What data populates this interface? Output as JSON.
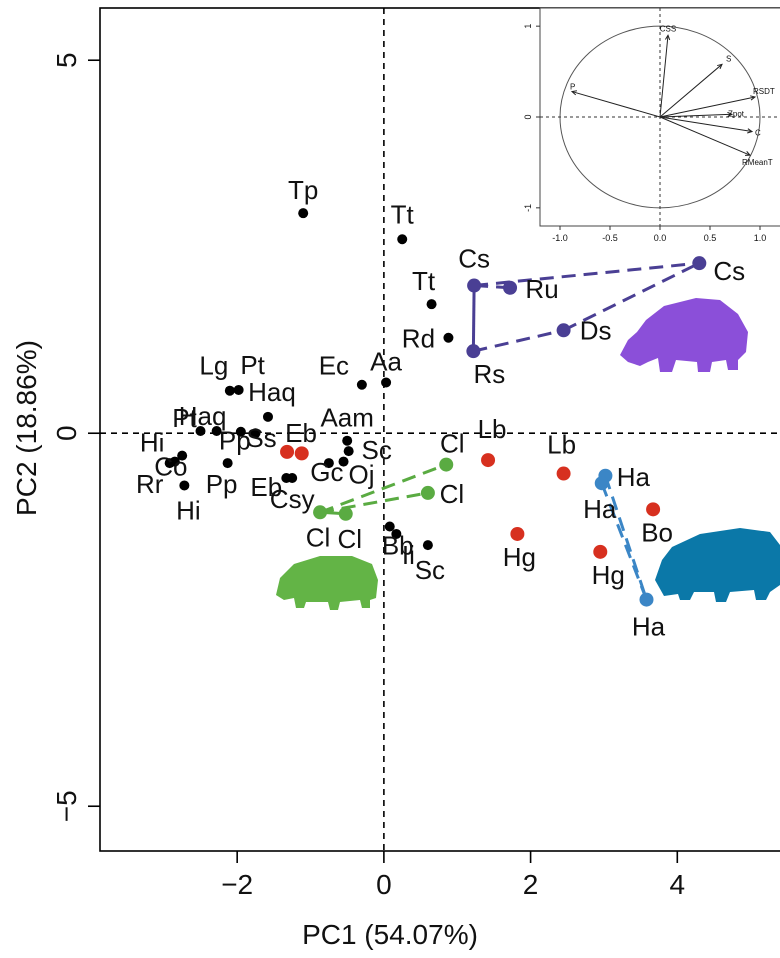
{
  "chart_data": [
    {
      "type": "scatter",
      "xlabel": "PC1 (54.07%)",
      "ylabel": "PC2 (18.86%)",
      "xlim": [
        -3.87,
        5.4
      ],
      "ylim": [
        -5.6,
        5.7
      ],
      "xticks": [
        -2,
        0,
        2,
        4
      ],
      "yticks": [
        -5,
        0,
        5
      ],
      "colors": {
        "other": "#000000",
        "hippo_red": "#d7301f",
        "rhino": "#4a3f94",
        "hippo_blue": "#3b86c6",
        "green": "#5aab42",
        "rhino_silhouette": "#8b4fd9",
        "hippo_silhouette": "#0b78a8",
        "pygmy_silhouette": "#63b446"
      },
      "series": [
        {
          "group": "other",
          "points": [
            {
              "label": "Tp",
              "x": -1.1,
              "y": 2.95
            },
            {
              "label": "Tt",
              "x": 0.25,
              "y": 2.6
            },
            {
              "label": "Tt",
              "x": 0.65,
              "y": 1.73
            },
            {
              "label": "Rd",
              "x": 0.88,
              "y": 1.28
            },
            {
              "label": "Aa",
              "x": 0.03,
              "y": 0.68
            },
            {
              "label": "Ec",
              "x": -0.3,
              "y": 0.65
            },
            {
              "label": "Lg",
              "x": -2.1,
              "y": 0.57
            },
            {
              "label": "Pt",
              "x": -1.98,
              "y": 0.58
            },
            {
              "label": "Haq",
              "x": -1.58,
              "y": 0.22
            },
            {
              "label": "Pt",
              "x": -2.5,
              "y": 0.03
            },
            {
              "label": "Haq",
              "x": -2.28,
              "y": 0.03
            },
            {
              "label": "Pp",
              "x": -1.95,
              "y": 0.02
            },
            {
              "label": "Ss",
              "x": -1.75,
              "y": 0.0
            },
            {
              "label": "Aam",
              "x": -0.5,
              "y": -0.1
            },
            {
              "label": "Hi",
              "x": -2.75,
              "y": -0.3
            },
            {
              "label": "Co",
              "x": -2.85,
              "y": -0.38
            },
            {
              "label": "Rr",
              "x": -2.92,
              "y": -0.4
            },
            {
              "label": "Pp",
              "x": -2.13,
              "y": -0.4
            },
            {
              "label": "Hi",
              "x": -2.72,
              "y": -0.7
            },
            {
              "label": "Eb",
              "x": -1.33,
              "y": -0.6
            },
            {
              "label": "Csy",
              "x": -1.25,
              "y": -0.6
            },
            {
              "label": "Sc",
              "x": -0.48,
              "y": -0.24
            },
            {
              "label": "Gc",
              "x": -0.75,
              "y": -0.4
            },
            {
              "label": "Oj",
              "x": -0.55,
              "y": -0.38
            },
            {
              "label": "Bb",
              "x": 0.08,
              "y": -1.25
            },
            {
              "label": "Ii",
              "x": 0.17,
              "y": -1.35
            },
            {
              "label": "Sc",
              "x": 0.6,
              "y": -1.5
            }
          ]
        },
        {
          "group": "hippo_red",
          "points": [
            {
              "label": "Eb",
              "x": -1.32,
              "y": -0.25
            },
            {
              "label": "",
              "x": -1.12,
              "y": -0.27
            },
            {
              "label": "Lb",
              "x": 1.42,
              "y": -0.36
            },
            {
              "label": "Lb",
              "x": 2.45,
              "y": -0.54
            },
            {
              "label": "Bo",
              "x": 3.67,
              "y": -1.02
            },
            {
              "label": "Hg",
              "x": 1.82,
              "y": -1.35
            },
            {
              "label": "Hg",
              "x": 2.95,
              "y": -1.59
            }
          ]
        },
        {
          "group": "rhino",
          "points": [
            {
              "label": "Cs",
              "x": 1.23,
              "y": 1.98
            },
            {
              "label": "Ru",
              "x": 1.72,
              "y": 1.95
            },
            {
              "label": "Cs",
              "x": 4.3,
              "y": 2.28
            },
            {
              "label": "Ds",
              "x": 2.45,
              "y": 1.38
            },
            {
              "label": "Rs",
              "x": 1.22,
              "y": 1.1
            }
          ]
        },
        {
          "group": "hippo_blue",
          "points": [
            {
              "label": "Ha",
              "x": 3.02,
              "y": -0.57
            },
            {
              "label": "Ha",
              "x": 2.97,
              "y": -0.67
            },
            {
              "label": "Ha",
              "x": 3.58,
              "y": -2.23
            }
          ]
        },
        {
          "group": "green",
          "points": [
            {
              "label": "Cl",
              "x": 0.85,
              "y": -0.42
            },
            {
              "label": "Cl",
              "x": 0.6,
              "y": -0.8
            },
            {
              "label": "Cl",
              "x": -0.87,
              "y": -1.06
            },
            {
              "label": "Cl",
              "x": -0.52,
              "y": -1.08
            }
          ]
        }
      ],
      "links": [
        {
          "group": "rhino",
          "from": [
            1.23,
            1.98
          ],
          "to": [
            1.72,
            1.95
          ],
          "dashed": true
        },
        {
          "group": "rhino",
          "from": [
            1.23,
            1.98
          ],
          "to": [
            4.3,
            2.28
          ],
          "dashed": true
        },
        {
          "group": "rhino",
          "from": [
            1.23,
            1.98
          ],
          "to": [
            1.22,
            1.1
          ],
          "dashed": false
        },
        {
          "group": "rhino",
          "from": [
            1.22,
            1.1
          ],
          "to": [
            2.45,
            1.38
          ],
          "dashed": true
        },
        {
          "group": "rhino",
          "from": [
            2.45,
            1.38
          ],
          "to": [
            4.3,
            2.28
          ],
          "dashed": true
        },
        {
          "group": "hippo_blue",
          "from": [
            3.02,
            -0.57
          ],
          "to": [
            3.58,
            -2.23
          ],
          "dashed": true
        },
        {
          "group": "hippo_blue",
          "from": [
            2.97,
            -0.67
          ],
          "to": [
            3.58,
            -2.23
          ],
          "dashed": true
        },
        {
          "group": "green",
          "from": [
            -0.87,
            -1.06
          ],
          "to": [
            0.85,
            -0.42
          ],
          "dashed": true
        },
        {
          "group": "green",
          "from": [
            -0.87,
            -1.06
          ],
          "to": [
            0.6,
            -0.8
          ],
          "dashed": true
        },
        {
          "group": "green",
          "from": [
            -0.87,
            -1.06
          ],
          "to": [
            -0.52,
            -1.08
          ],
          "dashed": false
        }
      ]
    },
    {
      "type": "biplot-loadings",
      "xlim": [
        -1.2,
        1.2
      ],
      "ylim": [
        -1.2,
        1.2
      ],
      "xticks": [
        "-1.0",
        "-0.5",
        "0.0",
        "0.5",
        "1.0"
      ],
      "yticks": [
        "-1",
        "0",
        "1"
      ],
      "vectors": [
        {
          "name": "CSS",
          "x": 0.08,
          "y": 0.9
        },
        {
          "name": "S",
          "x": 0.62,
          "y": 0.58
        },
        {
          "name": "P",
          "x": -0.88,
          "y": 0.28
        },
        {
          "name": "RSDT",
          "x": 0.95,
          "y": 0.22
        },
        {
          "name": "Zpot",
          "x": 0.72,
          "y": 0.03
        },
        {
          "name": "C",
          "x": 0.92,
          "y": -0.16
        },
        {
          "name": "RMeanT",
          "x": 0.9,
          "y": -0.42
        }
      ]
    }
  ]
}
